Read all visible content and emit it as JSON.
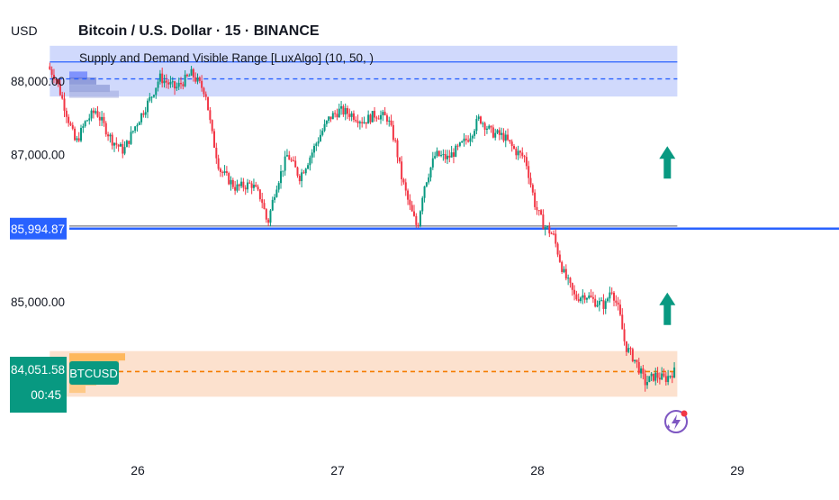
{
  "header": {
    "currency": "USD",
    "title": "Bitcoin / U.S. Dollar · 15 · BINANCE",
    "indicator_label": "Supply and Demand Visible Range [LuxAlgo] (10, 50, )"
  },
  "price_axis": {
    "ticks": [
      {
        "value": 88000,
        "label": "88,000.00"
      },
      {
        "value": 87000,
        "label": "87,000.00"
      },
      {
        "value": 85000,
        "label": "85,000.00"
      }
    ],
    "level_marker": {
      "value": 85994.87,
      "label": "85,994.87",
      "color": "#2962ff"
    },
    "last_price": {
      "value": 84051.58,
      "label": "84,051.58",
      "countdown": "00:45",
      "color": "#089981"
    }
  },
  "symbol_tag": {
    "label": "BTCUSD",
    "color": "#089981"
  },
  "time_axis": {
    "ticks": [
      {
        "day": 26,
        "label": "26"
      },
      {
        "day": 27,
        "label": "27"
      },
      {
        "day": 28,
        "label": "28"
      },
      {
        "day": 29,
        "label": "29"
      }
    ]
  },
  "chart_data": {
    "type": "candlestick",
    "symbol": "BTCUSD",
    "interval": "15",
    "exchange": "BINANCE",
    "x_unit": "day of month",
    "xlim": [
      25.5,
      29.5
    ],
    "ylim": [
      83600,
      88500
    ],
    "grid": false,
    "price_path": [
      [
        25.56,
        88200
      ],
      [
        25.6,
        88050
      ],
      [
        25.65,
        87600
      ],
      [
        25.7,
        87150
      ],
      [
        25.75,
        87450
      ],
      [
        25.8,
        87600
      ],
      [
        25.88,
        87200
      ],
      [
        25.94,
        87050
      ],
      [
        26.0,
        87400
      ],
      [
        26.08,
        87800
      ],
      [
        26.12,
        88050
      ],
      [
        26.2,
        87900
      ],
      [
        26.28,
        88100
      ],
      [
        26.35,
        87850
      ],
      [
        26.38,
        87300
      ],
      [
        26.42,
        86800
      ],
      [
        26.5,
        86550
      ],
      [
        26.58,
        86600
      ],
      [
        26.63,
        86400
      ],
      [
        26.66,
        86050
      ],
      [
        26.7,
        86550
      ],
      [
        26.76,
        87000
      ],
      [
        26.82,
        86700
      ],
      [
        26.86,
        86900
      ],
      [
        26.92,
        87250
      ],
      [
        26.97,
        87500
      ],
      [
        27.02,
        87600
      ],
      [
        27.08,
        87550
      ],
      [
        27.14,
        87450
      ],
      [
        27.2,
        87550
      ],
      [
        27.26,
        87500
      ],
      [
        27.3,
        87150
      ],
      [
        27.33,
        86700
      ],
      [
        27.37,
        86300
      ],
      [
        27.41,
        86000
      ],
      [
        27.44,
        86550
      ],
      [
        27.5,
        87000
      ],
      [
        27.56,
        86950
      ],
      [
        27.62,
        87100
      ],
      [
        27.67,
        87250
      ],
      [
        27.72,
        87500
      ],
      [
        27.78,
        87300
      ],
      [
        27.84,
        87250
      ],
      [
        27.9,
        87050
      ],
      [
        27.95,
        86950
      ],
      [
        28.0,
        86300
      ],
      [
        28.04,
        86050
      ],
      [
        28.09,
        85900
      ],
      [
        28.14,
        85400
      ],
      [
        28.2,
        85050
      ],
      [
        28.25,
        85100
      ],
      [
        28.3,
        85000
      ],
      [
        28.35,
        84950
      ],
      [
        28.38,
        85200
      ],
      [
        28.42,
        84850
      ],
      [
        28.45,
        84400
      ],
      [
        28.5,
        84200
      ],
      [
        28.55,
        83900
      ],
      [
        28.6,
        84000
      ],
      [
        28.65,
        83950
      ],
      [
        28.69,
        84050
      ]
    ],
    "horizontal_levels": [
      {
        "value": 88260,
        "style": "solid",
        "color": "#2962ff"
      },
      {
        "value": 88030,
        "style": "dashed",
        "color": "#2962ff"
      },
      {
        "value": 85994.87,
        "style": "solid",
        "color": "#2962ff"
      },
      {
        "value": 86030,
        "style": "solid",
        "color": "#787b86"
      },
      {
        "value": 84051.58,
        "style": "dashed",
        "color": "#f57c00"
      }
    ],
    "zones": [
      {
        "type": "supply",
        "from": 87790,
        "to": 88480,
        "x_start": 25.56,
        "x_end": 28.7,
        "color": "#c8d2fb"
      },
      {
        "type": "demand",
        "from": 83710,
        "to": 84330,
        "x_start": 25.56,
        "x_end": 28.7,
        "color": "#fbdcc5"
      }
    ],
    "signals": [
      {
        "type": "up-arrow",
        "x": 28.65,
        "y": 86870,
        "color": "#089981"
      },
      {
        "type": "up-arrow",
        "x": 28.65,
        "y": 84880,
        "color": "#089981"
      }
    ],
    "colors": {
      "up": "#089981",
      "down": "#f23645"
    }
  }
}
